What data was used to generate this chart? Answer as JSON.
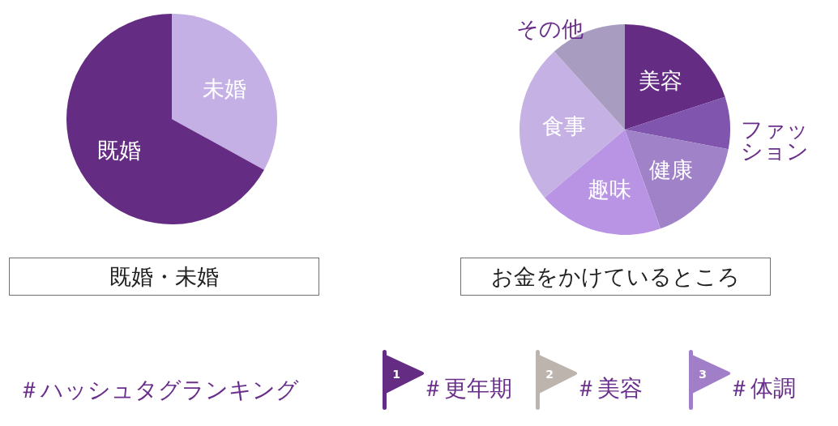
{
  "chart_data": [
    {
      "type": "pie",
      "title": "既婚・未婚",
      "categories": [
        "未婚",
        "既婚"
      ],
      "values": [
        33,
        67
      ],
      "colors": [
        "#c4b0e4",
        "#652c84"
      ]
    },
    {
      "type": "pie",
      "title": "お金をかけているところ",
      "categories": [
        "美容",
        "ファッション",
        "健康",
        "趣味",
        "食事",
        "その他"
      ],
      "values": [
        20,
        8,
        16.5,
        19.3,
        24.5,
        11.7
      ],
      "colors": [
        "#652c84",
        "#7f55ad",
        "#9f82c8",
        "#b994e4",
        "#c5b1e3",
        "#a89dc0"
      ]
    },
    {
      "type": "other",
      "title": "＃ハッシュタグランキング",
      "categories": [
        "＃更年期",
        "＃美容",
        "＃体調"
      ],
      "values": [
        1,
        2,
        3
      ],
      "colors": [
        "#652c84",
        "#bdb4ae",
        "#a07fc8"
      ],
      "data_labels": true
    }
  ]
}
